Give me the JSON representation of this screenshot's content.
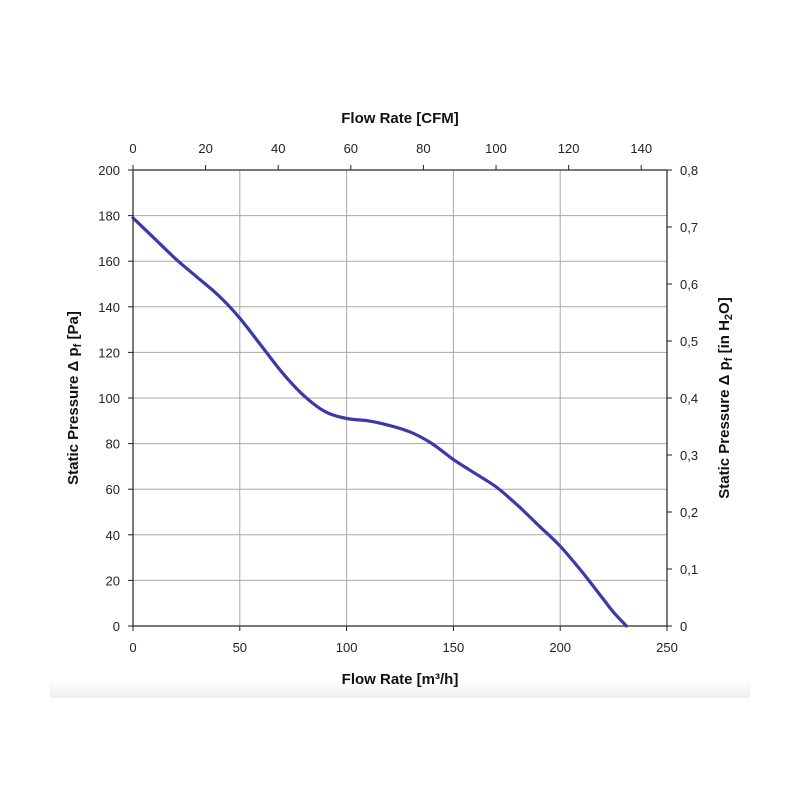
{
  "chart_data": {
    "type": "line",
    "title": "",
    "x": [
      0,
      10,
      20,
      30,
      40,
      50,
      60,
      70,
      80,
      90,
      100,
      110,
      120,
      130,
      140,
      150,
      160,
      170,
      180,
      190,
      200,
      210,
      220,
      225,
      231
    ],
    "series": [
      {
        "name": "Static Pressure",
        "color": "#3a3aa8",
        "values": [
          179,
          170,
          161,
          153,
          145,
          135,
          123,
          111,
          101,
          94,
          91,
          90,
          88,
          85,
          80,
          73,
          67,
          61,
          53,
          44,
          35,
          24,
          12,
          6,
          0
        ]
      }
    ],
    "xlabel": "Flow Rate [m³/h]",
    "xlim": [
      0,
      250
    ],
    "xticks": [
      "0",
      "50",
      "100",
      "150",
      "200",
      "250"
    ],
    "x2label": "Flow Rate [CFM]",
    "x2lim": [
      0,
      147.1
    ],
    "x2ticks": [
      "0",
      "20",
      "40",
      "60",
      "80",
      "100",
      "120",
      "140"
    ],
    "ylabel_parts": [
      "Static Pressure Δ p",
      "f",
      " [Pa]"
    ],
    "ylim": [
      0,
      200
    ],
    "yticks": [
      "0",
      "20",
      "40",
      "60",
      "80",
      "100",
      "120",
      "140",
      "160",
      "180",
      "200"
    ],
    "y2label_parts": [
      "Static Pressure Δ p",
      "f",
      " [in H",
      "2",
      "O]"
    ],
    "y2lim": [
      0,
      0.8
    ],
    "y2ticks": [
      "0",
      "0,1",
      "0,2",
      "0,3",
      "0,4",
      "0,5",
      "0,6",
      "0,7",
      "0,8"
    ],
    "grid": true
  }
}
